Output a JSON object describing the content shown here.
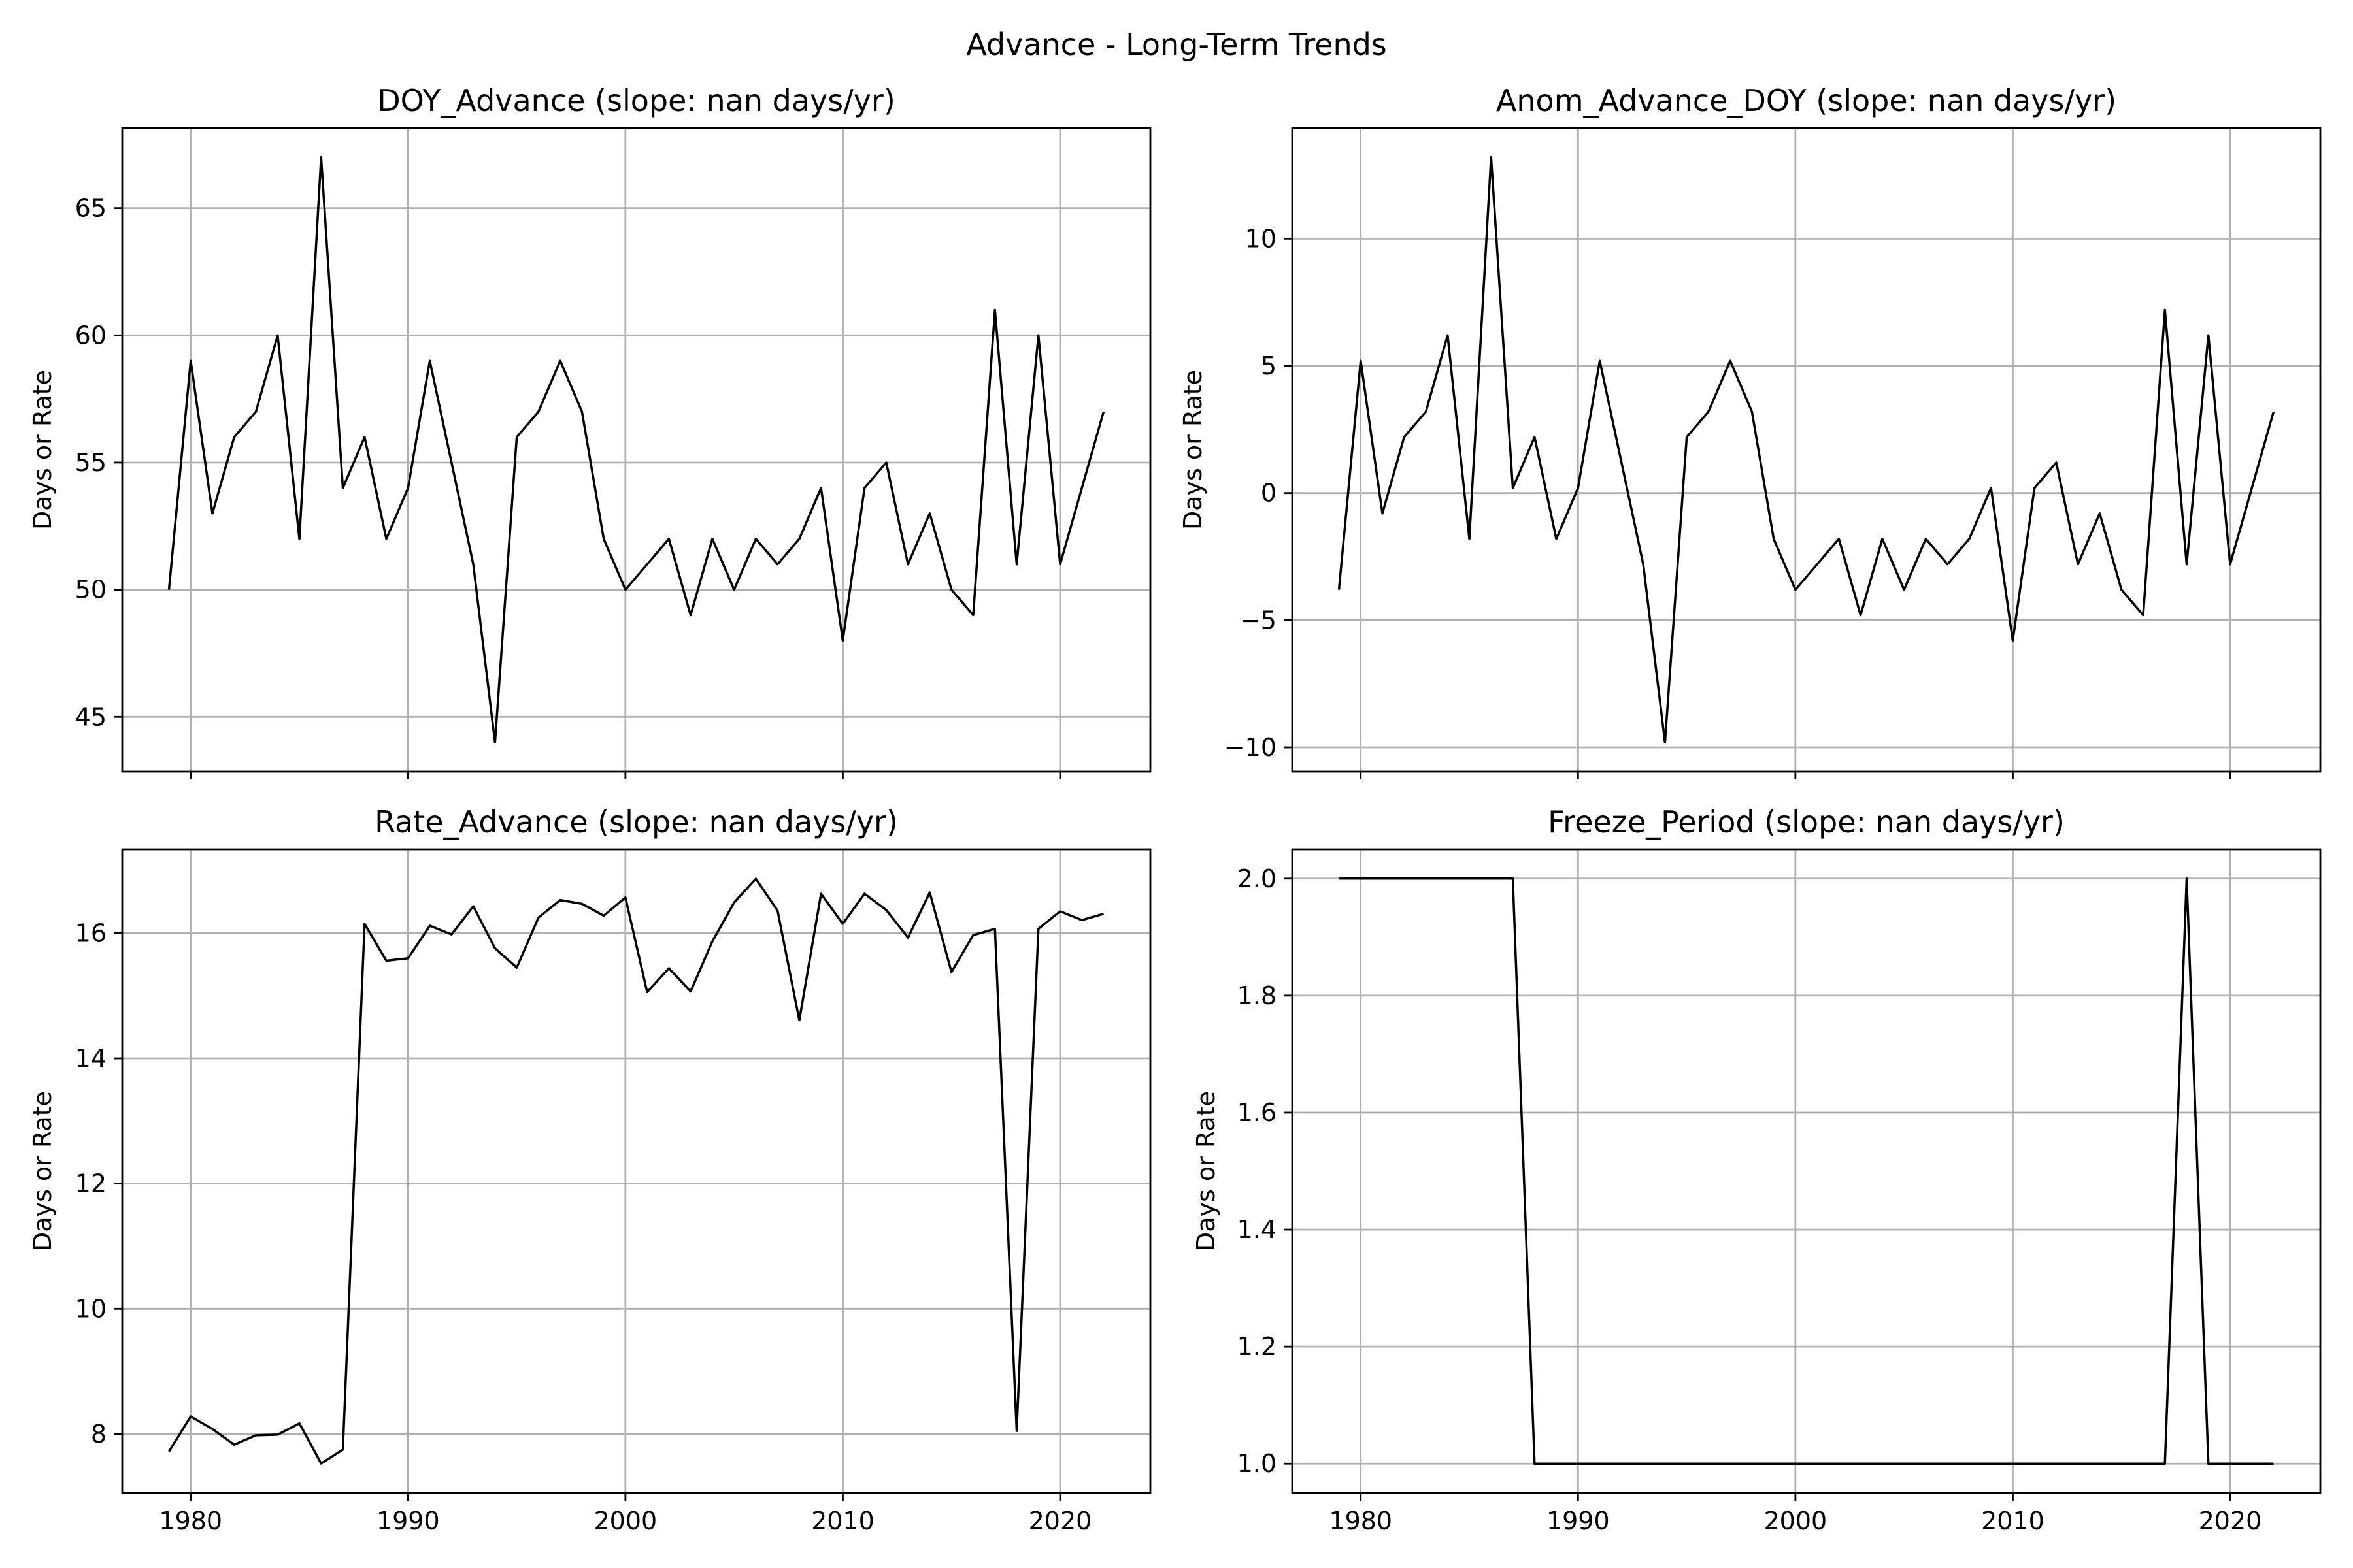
{
  "suptitle": "Advance - Long-Term Trends",
  "chart_data": [
    {
      "type": "line",
      "title": "DOY_Advance (slope: nan days/yr)",
      "xlabel": "",
      "ylabel": "Days or Rate",
      "xlim": [
        1976.85,
        2024.15
      ],
      "ylim": [
        42.85,
        68.15
      ],
      "xticks": [
        1980,
        1990,
        2000,
        2010,
        2020
      ],
      "yticks": [
        45,
        50,
        55,
        60,
        65
      ],
      "show_xtick_labels": false,
      "grid": true,
      "series": [
        {
          "x": [
            1979,
            1980,
            1981,
            1982,
            1983,
            1984,
            1985,
            1986,
            1987,
            1988,
            1989,
            1990,
            1991,
            1992,
            1993,
            1994,
            1995,
            1996,
            1997,
            1998,
            1999,
            2000,
            2001,
            2002,
            2003,
            2004,
            2005,
            2006,
            2007,
            2008,
            2009,
            2010,
            2011,
            2012,
            2013,
            2014,
            2015,
            2016,
            2017,
            2018,
            2019,
            2020,
            2021,
            2022
          ],
          "values": [
            50,
            59,
            53,
            56,
            57,
            60,
            52,
            67,
            54,
            56,
            52,
            54,
            59,
            55,
            51,
            44,
            56,
            57,
            59,
            57,
            52,
            50,
            51,
            52,
            49,
            52,
            50,
            52,
            51,
            52,
            54,
            48,
            54,
            55,
            51,
            53,
            50,
            49,
            61,
            51,
            60,
            51,
            54,
            57
          ],
          "color": "#000000"
        }
      ]
    },
    {
      "type": "line",
      "title": "Anom_Advance_DOY (slope: nan days/yr)",
      "xlabel": "",
      "ylabel": "Days or Rate",
      "xlim": [
        1976.85,
        2024.15
      ],
      "ylim": [
        -10.95,
        14.35
      ],
      "xticks": [
        1980,
        1990,
        2000,
        2010,
        2020
      ],
      "yticks": [
        -10,
        -5,
        0,
        5,
        10
      ],
      "ytick_labels": [
        "−10",
        "−5",
        "0",
        "5",
        "10"
      ],
      "show_xtick_labels": false,
      "grid": true,
      "series": [
        {
          "x": [
            1979,
            1980,
            1981,
            1982,
            1983,
            1984,
            1985,
            1986,
            1987,
            1988,
            1989,
            1990,
            1991,
            1992,
            1993,
            1994,
            1995,
            1996,
            1997,
            1998,
            1999,
            2000,
            2001,
            2002,
            2003,
            2004,
            2005,
            2006,
            2007,
            2008,
            2009,
            2010,
            2011,
            2012,
            2013,
            2014,
            2015,
            2016,
            2017,
            2018,
            2019,
            2020,
            2021,
            2022
          ],
          "values": [
            -3.8,
            5.2,
            -0.8,
            2.2,
            3.2,
            6.2,
            -1.8,
            13.2,
            0.2,
            2.2,
            -1.8,
            0.2,
            5.2,
            1.2,
            -2.8,
            -9.8,
            2.2,
            3.2,
            5.2,
            3.2,
            -1.8,
            -3.8,
            -2.8,
            -1.8,
            -4.8,
            -1.8,
            -3.8,
            -1.8,
            -2.8,
            -1.8,
            0.2,
            -5.8,
            0.2,
            1.2,
            -2.8,
            -0.8,
            -3.8,
            -4.8,
            7.2,
            -2.8,
            6.2,
            -2.8,
            0.2,
            3.2
          ],
          "color": "#000000"
        }
      ]
    },
    {
      "type": "line",
      "title": "Rate_Advance (slope: nan days/yr)",
      "xlabel": "",
      "ylabel": "Days or Rate",
      "xlim": [
        1976.85,
        2024.15
      ],
      "ylim": [
        7.06,
        17.34
      ],
      "xticks": [
        1980,
        1990,
        2000,
        2010,
        2020
      ],
      "yticks": [
        8,
        10,
        12,
        14,
        16
      ],
      "show_xtick_labels": true,
      "grid": true,
      "series": [
        {
          "x": [
            1979,
            1980,
            1981,
            1982,
            1983,
            1984,
            1985,
            1986,
            1987,
            1988,
            1989,
            1990,
            1991,
            1992,
            1993,
            1994,
            1995,
            1996,
            1997,
            1998,
            1999,
            2000,
            2001,
            2002,
            2003,
            2004,
            2005,
            2006,
            2007,
            2008,
            2009,
            2010,
            2011,
            2012,
            2013,
            2014,
            2015,
            2016,
            2017,
            2018,
            2019,
            2020,
            2021,
            2022
          ],
          "values": [
            7.72,
            8.28,
            8.08,
            7.83,
            7.98,
            7.99,
            8.17,
            7.53,
            7.75,
            16.15,
            15.56,
            15.6,
            16.12,
            15.98,
            16.43,
            15.76,
            15.45,
            16.25,
            16.53,
            16.47,
            16.28,
            16.57,
            15.06,
            15.44,
            15.07,
            15.87,
            16.49,
            16.87,
            16.36,
            14.61,
            16.63,
            16.15,
            16.63,
            16.37,
            15.93,
            16.65,
            15.38,
            15.97,
            16.07,
            8.05,
            16.07,
            16.35,
            16.21,
            16.31
          ],
          "color": "#000000"
        }
      ]
    },
    {
      "type": "line",
      "title": "Freeze_Period (slope: nan days/yr)",
      "xlabel": "",
      "ylabel": "Days or Rate",
      "xlim": [
        1976.85,
        2024.15
      ],
      "ylim": [
        0.95,
        2.05
      ],
      "xticks": [
        1980,
        1990,
        2000,
        2010,
        2020
      ],
      "yticks": [
        1.0,
        1.2,
        1.4,
        1.6,
        1.8,
        2.0
      ],
      "ytick_labels": [
        "1.0",
        "1.2",
        "1.4",
        "1.6",
        "1.8",
        "2.0"
      ],
      "show_xtick_labels": true,
      "grid": true,
      "series": [
        {
          "x": [
            1979,
            1980,
            1981,
            1982,
            1983,
            1984,
            1985,
            1986,
            1987,
            1988,
            1989,
            1990,
            1991,
            1992,
            1993,
            1994,
            1995,
            1996,
            1997,
            1998,
            1999,
            2000,
            2001,
            2002,
            2003,
            2004,
            2005,
            2006,
            2007,
            2008,
            2009,
            2010,
            2011,
            2012,
            2013,
            2014,
            2015,
            2016,
            2017,
            2018,
            2019,
            2020,
            2021,
            2022
          ],
          "values": [
            2,
            2,
            2,
            2,
            2,
            2,
            2,
            2,
            2,
            1,
            1,
            1,
            1,
            1,
            1,
            1,
            1,
            1,
            1,
            1,
            1,
            1,
            1,
            1,
            1,
            1,
            1,
            1,
            1,
            1,
            1,
            1,
            1,
            1,
            1,
            1,
            1,
            1,
            1,
            2,
            1,
            1,
            1,
            1
          ],
          "color": "#000000"
        }
      ]
    }
  ]
}
